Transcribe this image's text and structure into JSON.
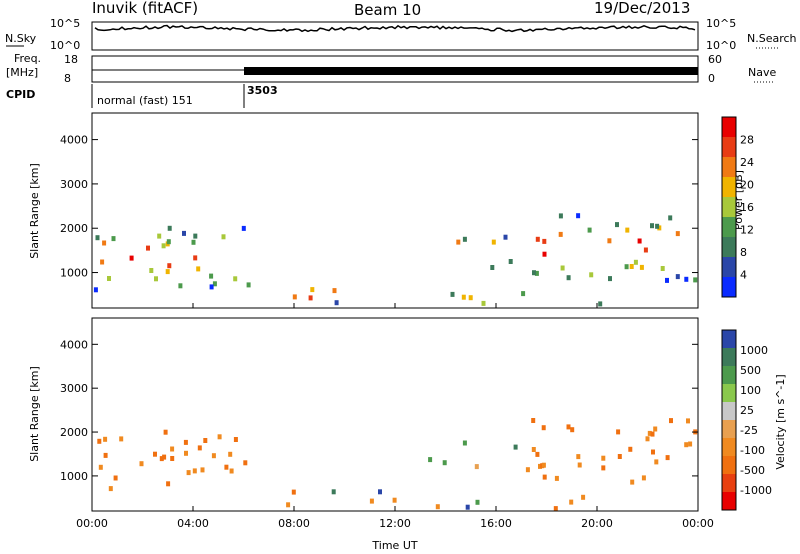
{
  "header": {
    "station": "Inuvik (fitACF)",
    "beam": "Beam 10",
    "date": "19/Dec/2013"
  },
  "strip_labels": {
    "nsky": "N.Sky",
    "nsky_ticks": [
      "10^5",
      "10^0"
    ],
    "nsearch": "N.Search",
    "nsearch_ticks": [
      "10^5",
      "10^0"
    ],
    "freq": "Freq.",
    "freq_unit": "[MHz]",
    "freq_ticks": [
      "18",
      "8"
    ],
    "nave": "Nave",
    "nave_ticks": [
      "60",
      "0"
    ],
    "cpid": "CPID",
    "cpid_mode1": "normal (fast) 151",
    "cpid_mode2": "3503"
  },
  "colors": {
    "power_scale": [
      "#0a2bff",
      "#2a46a8",
      "#3c7a5a",
      "#4c9a4c",
      "#a8c83a",
      "#f0b400",
      "#f07a14",
      "#e83c14",
      "#e80000"
    ],
    "velocity_scale": [
      "#2a46a8",
      "#3c7a5a",
      "#4c9a4c",
      "#8ac84c",
      "#c8c8c8",
      "#e8a050",
      "#f08a20",
      "#f07010",
      "#e84010",
      "#e80000"
    ]
  },
  "chart_data": [
    {
      "type": "heatmap",
      "panel": "power",
      "xlabel": "",
      "ylabel": "Slant Range [km]",
      "x_ticks": [
        "00:00",
        "04:00",
        "08:00",
        "12:00",
        "16:00",
        "20:00",
        "00:00"
      ],
      "y_ticks": [
        "1000",
        "2000",
        "3000",
        "4000"
      ],
      "ylim": [
        200,
        4600
      ],
      "colorbar_label": "Power [dB]",
      "colorbar_ticks": [
        "28",
        "24",
        "20",
        "16",
        "12",
        "8",
        "4"
      ]
    },
    {
      "type": "heatmap",
      "panel": "velocity",
      "xlabel": "Time UT",
      "ylabel": "Slant Range [km]",
      "x_ticks": [
        "00:00",
        "04:00",
        "08:00",
        "12:00",
        "16:00",
        "20:00",
        "00:00"
      ],
      "y_ticks": [
        "1000",
        "2000",
        "3000",
        "4000"
      ],
      "ylim": [
        200,
        4600
      ],
      "colorbar_label": "Velocity [m s^-1]",
      "colorbar_ticks": [
        "1000",
        "500",
        "100",
        "25",
        "-25",
        "-100",
        "-500",
        "-1000"
      ]
    }
  ]
}
